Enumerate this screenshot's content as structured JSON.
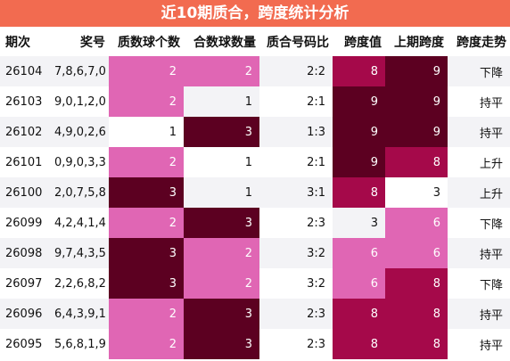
{
  "title": "近10期质合，跨度统计分析",
  "headers": [
    "期次",
    "奖号",
    "质数球个数",
    "合数球数量",
    "质合号码比",
    "跨度值",
    "上期跨度",
    "跨度走势"
  ],
  "rows": [
    {
      "period": "26104",
      "numbers": "7,8,6,7,0",
      "prime_count": "2",
      "composite_count": "2",
      "ratio": "2:2",
      "span": "8",
      "prev_span": "9",
      "trend": "下降"
    },
    {
      "period": "26103",
      "numbers": "9,0,1,2,0",
      "prime_count": "2",
      "composite_count": "1",
      "ratio": "2:1",
      "span": "9",
      "prev_span": "9",
      "trend": "持平"
    },
    {
      "period": "26102",
      "numbers": "4,9,0,2,6",
      "prime_count": "1",
      "composite_count": "3",
      "ratio": "1:3",
      "span": "9",
      "prev_span": "9",
      "trend": "持平"
    },
    {
      "period": "26101",
      "numbers": "0,9,0,3,3",
      "prime_count": "2",
      "composite_count": "1",
      "ratio": "2:1",
      "span": "9",
      "prev_span": "8",
      "trend": "上升"
    },
    {
      "period": "26100",
      "numbers": "2,0,7,5,8",
      "prime_count": "3",
      "composite_count": "1",
      "ratio": "3:1",
      "span": "8",
      "prev_span": "3",
      "trend": "上升"
    },
    {
      "period": "26099",
      "numbers": "4,2,4,1,4",
      "prime_count": "2",
      "composite_count": "3",
      "ratio": "2:3",
      "span": "3",
      "prev_span": "6",
      "trend": "下降"
    },
    {
      "period": "26098",
      "numbers": "9,7,4,3,5",
      "prime_count": "3",
      "composite_count": "2",
      "ratio": "3:2",
      "span": "6",
      "prev_span": "6",
      "trend": "持平"
    },
    {
      "period": "26097",
      "numbers": "2,2,6,8,2",
      "prime_count": "3",
      "composite_count": "2",
      "ratio": "3:2",
      "span": "6",
      "prev_span": "8",
      "trend": "下降"
    },
    {
      "period": "26096",
      "numbers": "6,4,3,9,1",
      "prime_count": "2",
      "composite_count": "3",
      "ratio": "2:3",
      "span": "8",
      "prev_span": "8",
      "trend": "持平"
    },
    {
      "period": "26095",
      "numbers": "5,6,8,1,9",
      "prime_count": "2",
      "composite_count": "3",
      "ratio": "2:3",
      "span": "8",
      "prev_span": "8",
      "trend": "持平"
    }
  ],
  "colors": {
    "title_bg": "#f26b50",
    "pink": "#e066b4",
    "maroon": "#5c0021",
    "crimson": "#a5094a",
    "light": "#f3f3f6"
  }
}
